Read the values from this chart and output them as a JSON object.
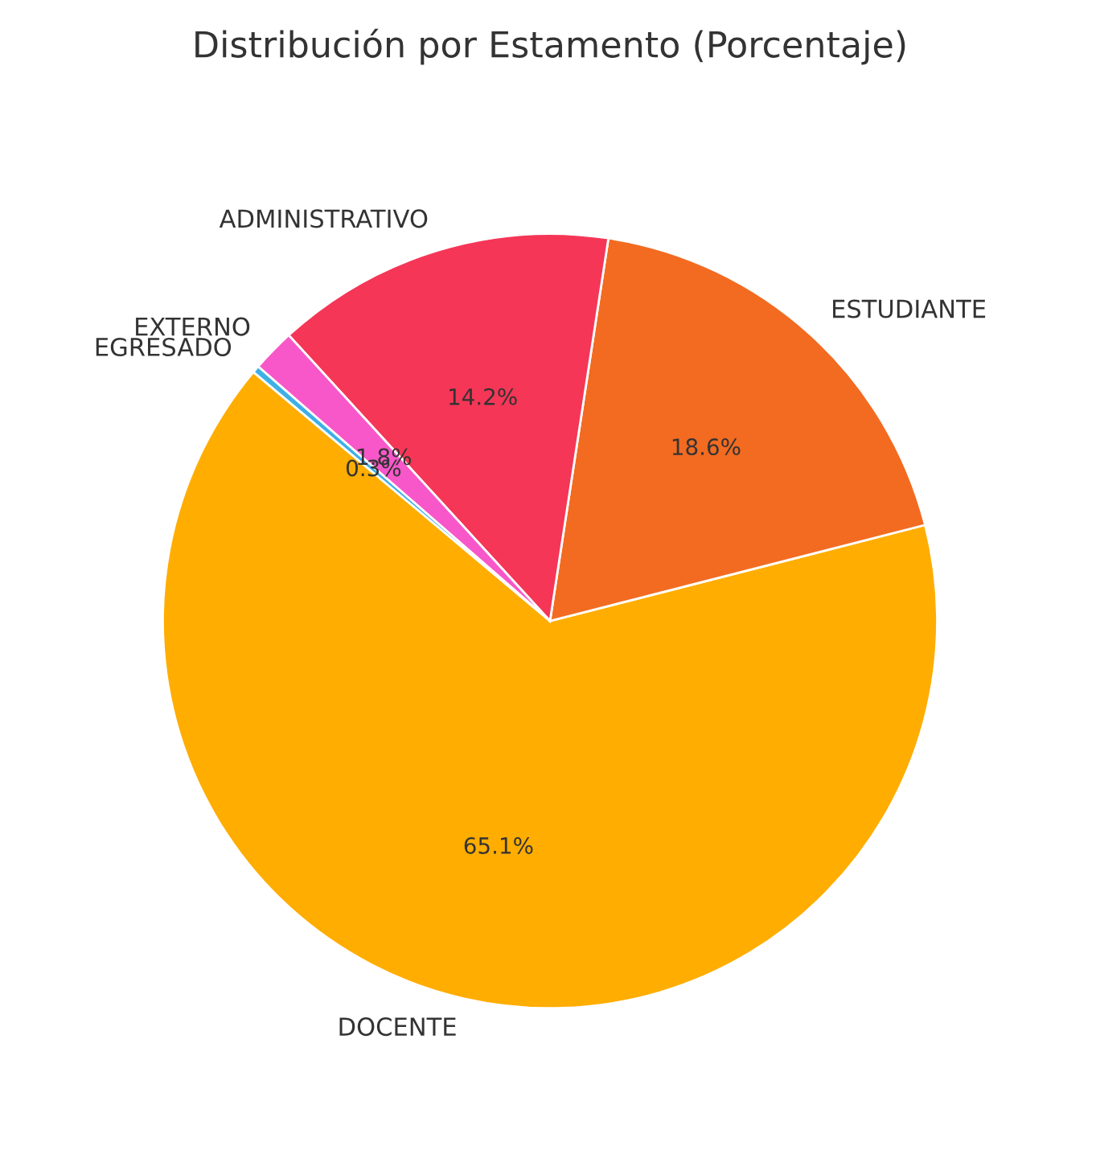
{
  "chart_data": {
    "type": "pie",
    "title": "Distribución por Estamento (Porcentaje)",
    "categories": [
      "DOCENTE",
      "ESTUDIANTE",
      "ADMINISTRATIVO",
      "EXTERNO",
      "EGRESADO"
    ],
    "values": [
      65.1,
      18.6,
      14.2,
      1.8,
      0.3
    ],
    "colors": [
      "#ffad00",
      "#f26b21",
      "#f53657",
      "#f857c9",
      "#3db0e6"
    ],
    "value_labels": [
      "65.1%",
      "18.6%",
      "14.2%",
      "1.8%",
      "0.3%"
    ]
  }
}
